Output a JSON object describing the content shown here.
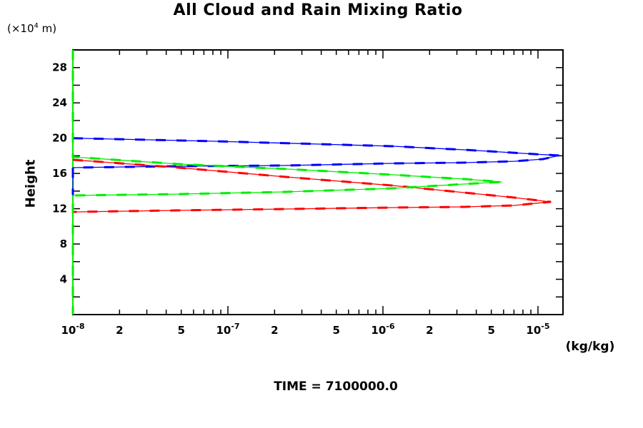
{
  "title": "All Cloud and Rain Mixing Ratio",
  "y_unit_label": {
    "prefix": "(×10",
    "exp": "4",
    "suffix": " m)"
  },
  "y_axis_title": "Height",
  "x_unit_label": "(kg/kg)",
  "time_label": "TIME = 7100000.0",
  "colors": {
    "frame": "#000000",
    "axis_left": "#00ee00",
    "blue_series": "#0000ff",
    "green_series": "#00ee00",
    "red_series": "#ff0000",
    "text": "#000000"
  },
  "chart_data": {
    "type": "line",
    "x_scale": "log",
    "x_range": [
      1e-08,
      1.45e-05
    ],
    "y_range": [
      0,
      30
    ],
    "grid": false,
    "legend": "none",
    "x_major_ticks": [
      {
        "v": 1e-08,
        "base": "10",
        "exp": "-8"
      },
      {
        "v": 1e-07,
        "base": "10",
        "exp": "-7"
      },
      {
        "v": 1e-06,
        "base": "10",
        "exp": "-6"
      },
      {
        "v": 1e-05,
        "base": "10",
        "exp": "-5"
      }
    ],
    "x_minor_multipliers": [
      2,
      3,
      4,
      5,
      6,
      7,
      8,
      9
    ],
    "x_labeled_minor_multipliers": [
      2,
      5
    ],
    "y_minor_tick_step": 2,
    "y_tick_labels": [
      {
        "v": 4,
        "label": "4"
      },
      {
        "v": 8,
        "label": "8"
      },
      {
        "v": 12,
        "label": "12"
      },
      {
        "v": 16,
        "label": "16"
      },
      {
        "v": 20,
        "label": "20"
      },
      {
        "v": 24,
        "label": "24"
      },
      {
        "v": 28,
        "label": "28"
      }
    ],
    "series": [
      {
        "name": "blue-curve",
        "color": "#0000ff",
        "points": [
          [
            1e-08,
            20.0
          ],
          [
            8.18e-08,
            19.65
          ],
          [
            4.02e-07,
            19.32
          ],
          [
            1.16e-06,
            19.08
          ],
          [
            3.35e-06,
            18.68
          ],
          [
            5.7e-06,
            18.44
          ],
          [
            9.68e-06,
            18.19
          ],
          [
            1.37e-05,
            18.03
          ],
          [
            1.08e-05,
            17.63
          ],
          [
            7.04e-06,
            17.38
          ],
          [
            3.35e-06,
            17.22
          ],
          [
            1.16e-06,
            17.14
          ],
          [
            2.36e-07,
            16.9
          ],
          [
            4.81e-08,
            16.82
          ],
          [
            1e-08,
            16.66
          ],
          [
            1e-08,
            13.55
          ]
        ]
      },
      {
        "name": "red-curve",
        "color": "#ff0000",
        "points": [
          [
            1e-08,
            17.55
          ],
          [
            4.81e-08,
            16.66
          ],
          [
            2.36e-07,
            15.61
          ],
          [
            1.16e-06,
            14.63
          ],
          [
            3.35e-06,
            13.83
          ],
          [
            7.04e-06,
            13.26
          ],
          [
            1.2e-05,
            12.78
          ],
          [
            7.04e-06,
            12.37
          ],
          [
            3.35e-06,
            12.21
          ],
          [
            1.16e-06,
            12.13
          ],
          [
            2.36e-07,
            11.97
          ],
          [
            4.81e-08,
            11.81
          ],
          [
            1e-08,
            11.64
          ]
        ]
      },
      {
        "name": "green-curve",
        "color": "#00ee00",
        "points": [
          [
            1e-08,
            30.0
          ],
          [
            1e-08,
            17.87
          ],
          [
            4.81e-08,
            17.06
          ],
          [
            2.36e-07,
            16.5
          ],
          [
            1.16e-06,
            15.85
          ],
          [
            3.35e-06,
            15.36
          ],
          [
            5.82e-06,
            15.04
          ],
          [
            3.35e-06,
            14.8
          ],
          [
            1.16e-06,
            14.31
          ],
          [
            2.36e-07,
            13.91
          ],
          [
            4.81e-08,
            13.66
          ],
          [
            1e-08,
            13.5
          ],
          [
            1e-08,
            0.0
          ]
        ]
      }
    ]
  }
}
